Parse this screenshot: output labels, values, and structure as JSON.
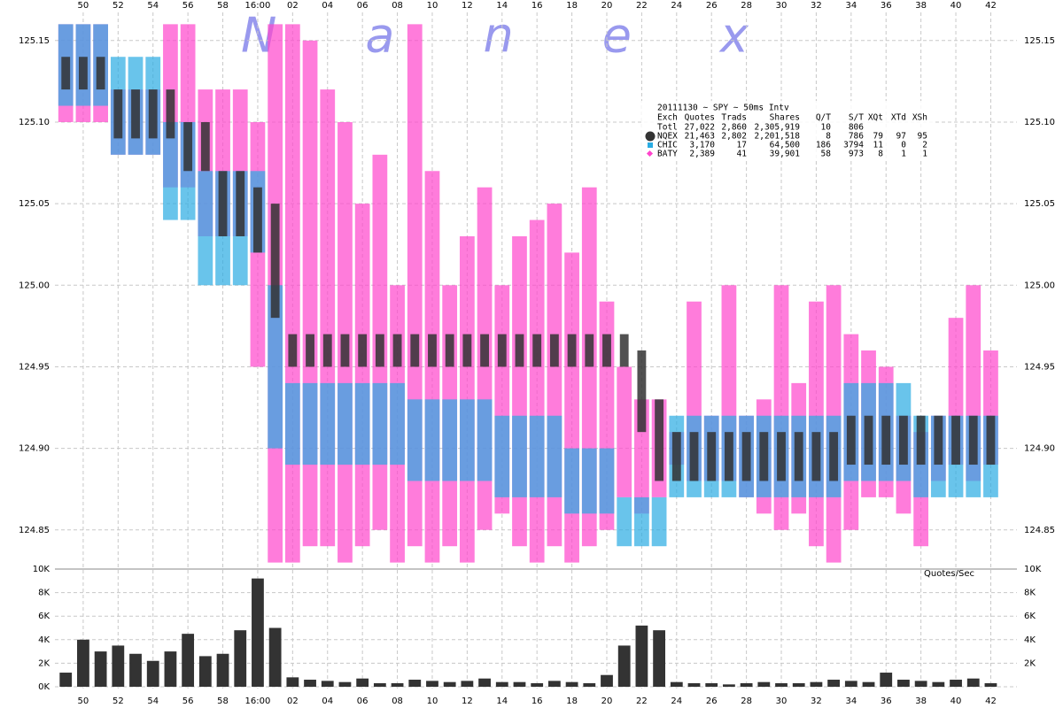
{
  "chart_data": [
    {
      "type": "range",
      "title": "Nanex",
      "annotation": "Quotes/Sec",
      "x": [
        -11,
        -10,
        -9,
        -8,
        -7,
        -6,
        -5,
        -4,
        -3,
        -2,
        -1,
        0,
        1,
        2,
        3,
        4,
        5,
        6,
        7,
        8,
        9,
        10,
        11,
        12,
        13,
        14,
        15,
        16,
        17,
        18,
        19,
        20,
        21,
        22,
        23,
        24,
        25,
        26,
        27,
        28,
        29,
        30,
        31,
        32,
        33,
        34,
        35,
        36,
        37,
        38,
        39,
        40,
        41,
        42
      ],
      "xlim": [
        -11.62,
        43.5
      ],
      "xticks": [
        {
          "value": -10,
          "label": "50"
        },
        {
          "value": -8,
          "label": "52"
        },
        {
          "value": -6,
          "label": "54"
        },
        {
          "value": -4,
          "label": "56"
        },
        {
          "value": -2,
          "label": "58"
        },
        {
          "value": 0,
          "label": "16:00"
        },
        {
          "value": 2,
          "label": "02"
        },
        {
          "value": 4,
          "label": "04"
        },
        {
          "value": 6,
          "label": "06"
        },
        {
          "value": 8,
          "label": "08"
        },
        10,
        12,
        14,
        16,
        18,
        20,
        22,
        24,
        26,
        28,
        30,
        32,
        34,
        36,
        38,
        40,
        42
      ],
      "ylim": [
        124.826,
        125.164
      ],
      "yticks": [
        {
          "value": 124.85,
          "label": "124.85"
        },
        {
          "value": 124.9,
          "label": "124.90"
        },
        {
          "value": 124.95,
          "label": "124.95"
        },
        {
          "value": 125,
          "label": "125.00"
        },
        {
          "value": 125.05,
          "label": "125.05"
        },
        {
          "value": 125.1,
          "label": "125.10"
        },
        {
          "value": 125.15,
          "label": "125.15"
        }
      ],
      "grid": true,
      "series": [
        {
          "name": "NQEX",
          "color": "#333333",
          "low": [
            125.12,
            125.12,
            125.12,
            125.09,
            125.09,
            125.09,
            125.09,
            125.07,
            125.07,
            125.03,
            125.03,
            125.02,
            124.98,
            124.95,
            124.95,
            124.95,
            124.95,
            124.95,
            124.95,
            124.95,
            124.95,
            124.95,
            124.95,
            124.95,
            124.95,
            124.95,
            124.95,
            124.95,
            124.95,
            124.95,
            124.95,
            124.95,
            124.95,
            124.91,
            124.88,
            124.88,
            124.88,
            124.88,
            124.88,
            124.88,
            124.88,
            124.88,
            124.88,
            124.88,
            124.88,
            124.89,
            124.89,
            124.89,
            124.89,
            124.89,
            124.89,
            124.89,
            124.89,
            124.89
          ],
          "high": [
            125.14,
            125.14,
            125.14,
            125.12,
            125.12,
            125.12,
            125.12,
            125.1,
            125.1,
            125.07,
            125.07,
            125.06,
            125.05,
            124.97,
            124.97,
            124.97,
            124.97,
            124.97,
            124.97,
            124.97,
            124.97,
            124.97,
            124.97,
            124.97,
            124.97,
            124.97,
            124.97,
            124.97,
            124.97,
            124.97,
            124.97,
            124.97,
            124.97,
            124.96,
            124.93,
            124.91,
            124.91,
            124.91,
            124.91,
            124.91,
            124.91,
            124.91,
            124.91,
            124.91,
            124.91,
            124.92,
            124.92,
            124.92,
            124.92,
            124.92,
            124.92,
            124.92,
            124.92,
            124.92
          ]
        },
        {
          "name": "CHIC",
          "color": "#29abe2",
          "low": [
            125.11,
            125.11,
            125.11,
            125.08,
            125.08,
            125.08,
            125.04,
            125.04,
            125,
            125,
            125,
            125.02,
            124.9,
            124.89,
            124.89,
            124.89,
            124.89,
            124.89,
            124.89,
            124.89,
            124.88,
            124.88,
            124.88,
            124.88,
            124.88,
            124.87,
            124.87,
            124.87,
            124.87,
            124.86,
            124.86,
            124.86,
            124.84,
            124.84,
            124.84,
            124.87,
            124.87,
            124.87,
            124.87,
            124.87,
            124.87,
            124.87,
            124.87,
            124.87,
            124.87,
            124.88,
            124.88,
            124.88,
            124.88,
            124.87,
            124.87,
            124.87,
            124.87,
            124.87
          ],
          "high": [
            125.16,
            125.16,
            125.16,
            125.14,
            125.14,
            125.14,
            125.1,
            125.1,
            125.07,
            125.07,
            125.07,
            125.07,
            125,
            124.94,
            124.94,
            124.94,
            124.94,
            124.94,
            124.94,
            124.94,
            124.93,
            124.93,
            124.93,
            124.93,
            124.93,
            124.92,
            124.92,
            124.92,
            124.92,
            124.9,
            124.9,
            124.9,
            124.87,
            124.87,
            124.87,
            124.92,
            124.92,
            124.92,
            124.92,
            124.92,
            124.92,
            124.92,
            124.92,
            124.92,
            124.92,
            124.94,
            124.94,
            124.94,
            124.94,
            124.92,
            124.92,
            124.92,
            124.92,
            124.92
          ]
        },
        {
          "name": "BATY",
          "color": "#ff44cc",
          "low": [
            125.1,
            125.1,
            125.1,
            125.08,
            125.08,
            125.08,
            125.06,
            125.06,
            125.03,
            125.03,
            125.03,
            124.95,
            124.83,
            124.83,
            124.84,
            124.84,
            124.83,
            124.84,
            124.85,
            124.83,
            124.84,
            124.83,
            124.84,
            124.83,
            124.85,
            124.86,
            124.84,
            124.83,
            124.84,
            124.83,
            124.84,
            124.85,
            124.87,
            124.86,
            124.87,
            124.89,
            124.88,
            124.88,
            124.88,
            124.87,
            124.86,
            124.85,
            124.86,
            124.84,
            124.83,
            124.85,
            124.87,
            124.87,
            124.86,
            124.84,
            124.88,
            124.89,
            124.88,
            124.89
          ],
          "high": [
            125.16,
            125.16,
            125.16,
            125.12,
            125.12,
            125.12,
            125.16,
            125.16,
            125.12,
            125.12,
            125.12,
            125.1,
            125.16,
            125.16,
            125.15,
            125.12,
            125.1,
            125.05,
            125.08,
            125,
            125.16,
            125.07,
            125,
            125.03,
            125.06,
            125,
            125.03,
            125.04,
            125.05,
            125.02,
            125.06,
            124.99,
            124.95,
            124.93,
            124.93,
            124.91,
            124.99,
            124.92,
            125,
            124.92,
            124.93,
            125,
            124.94,
            124.99,
            125,
            124.97,
            124.96,
            124.95,
            124.92,
            124.91,
            124.92,
            124.98,
            125,
            124.96
          ]
        }
      ],
      "legend": {
        "title": "20111130 ~ SPY ~ 50ms Intv",
        "columns": [
          "Exch",
          "Quotes",
          "Trads",
          "Shares",
          "Q/T",
          "S/T",
          "XQt",
          "XTd",
          "XSh"
        ],
        "rows": [
          [
            "Totl",
            "27,022",
            "2,860",
            "2,305,919",
            "10",
            "806",
            "",
            "",
            ""
          ],
          [
            "NQEX",
            "21,463",
            "2,802",
            "2,201,518",
            "8",
            "786",
            "79",
            "97",
            "95"
          ],
          [
            "CHIC",
            "3,170",
            "17",
            "64,500",
            "186",
            "3794",
            "11",
            "0",
            "2"
          ],
          [
            "BATY",
            "2,389",
            "41",
            "39,901",
            "58",
            "973",
            "8",
            "1",
            "1"
          ]
        ]
      }
    },
    {
      "type": "bar",
      "x": [
        -11,
        -10,
        -9,
        -8,
        -7,
        -6,
        -5,
        -4,
        -3,
        -2,
        -1,
        0,
        1,
        2,
        3,
        4,
        5,
        6,
        7,
        8,
        9,
        10,
        11,
        12,
        13,
        14,
        15,
        16,
        17,
        18,
        19,
        20,
        21,
        22,
        23,
        24,
        25,
        26,
        27,
        28,
        29,
        30,
        31,
        32,
        33,
        34,
        35,
        36,
        37,
        38,
        39,
        40,
        41,
        42
      ],
      "values": [
        1200,
        4000,
        3000,
        3500,
        2800,
        2200,
        3000,
        4500,
        2600,
        2800,
        4800,
        9200,
        5000,
        800,
        600,
        500,
        400,
        700,
        300,
        300,
        600,
        500,
        400,
        500,
        700,
        400,
        400,
        300,
        500,
        400,
        300,
        1000,
        3500,
        5200,
        4800,
        400,
        300,
        300,
        200,
        300,
        400,
        300,
        300,
        400,
        600,
        500,
        400,
        1200,
        600,
        500,
        400,
        600,
        700,
        300
      ],
      "color": "#333333",
      "ylim": [
        0,
        10000
      ],
      "yticks": [
        {
          "value": 0,
          "label": "0K"
        },
        {
          "value": 2000,
          "label": "2K"
        },
        {
          "value": 4000,
          "label": "4K"
        },
        {
          "value": 6000,
          "label": "6K"
        },
        {
          "value": 8000,
          "label": "8K"
        },
        {
          "value": 10000,
          "label": "10K"
        }
      ]
    }
  ]
}
